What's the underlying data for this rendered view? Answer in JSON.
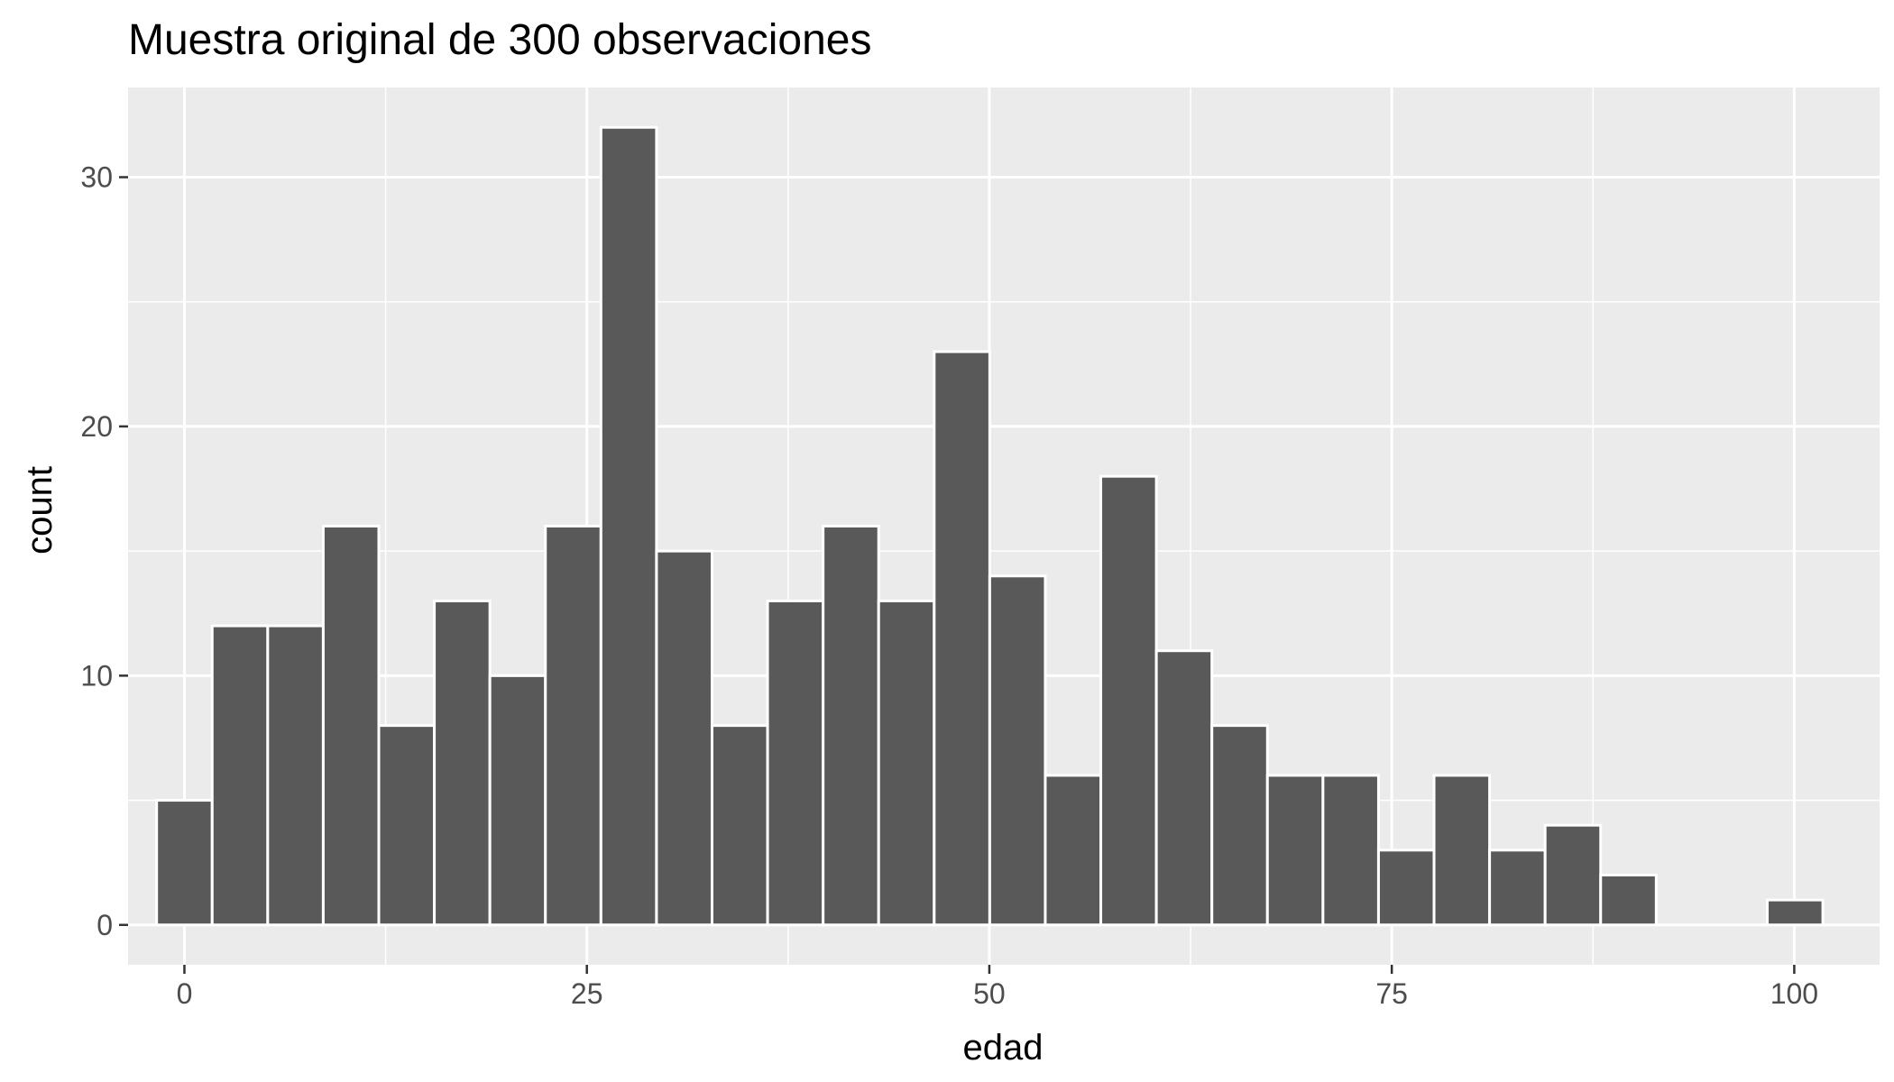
{
  "chart_data": {
    "type": "bar",
    "title": "Muestra original de 300 observaciones",
    "xlabel": "edad",
    "ylabel": "count",
    "bin_width": 3.45,
    "bins": [
      {
        "x": 0.0,
        "count": 5
      },
      {
        "x": 3.45,
        "count": 12
      },
      {
        "x": 6.9,
        "count": 12
      },
      {
        "x": 10.35,
        "count": 16
      },
      {
        "x": 13.8,
        "count": 8
      },
      {
        "x": 17.25,
        "count": 13
      },
      {
        "x": 20.7,
        "count": 10
      },
      {
        "x": 24.15,
        "count": 16
      },
      {
        "x": 27.6,
        "count": 32
      },
      {
        "x": 31.05,
        "count": 15
      },
      {
        "x": 34.5,
        "count": 8
      },
      {
        "x": 37.95,
        "count": 13
      },
      {
        "x": 41.4,
        "count": 16
      },
      {
        "x": 44.85,
        "count": 13
      },
      {
        "x": 48.3,
        "count": 23
      },
      {
        "x": 51.75,
        "count": 14
      },
      {
        "x": 55.2,
        "count": 6
      },
      {
        "x": 58.65,
        "count": 18
      },
      {
        "x": 62.1,
        "count": 11
      },
      {
        "x": 65.55,
        "count": 8
      },
      {
        "x": 69.0,
        "count": 6
      },
      {
        "x": 72.45,
        "count": 6
      },
      {
        "x": 75.9,
        "count": 3
      },
      {
        "x": 79.35,
        "count": 6
      },
      {
        "x": 82.8,
        "count": 3
      },
      {
        "x": 86.25,
        "count": 4
      },
      {
        "x": 89.7,
        "count": 2
      },
      {
        "x": 93.15,
        "count": 0
      },
      {
        "x": 96.6,
        "count": 0
      },
      {
        "x": 100.05,
        "count": 1
      }
    ],
    "xlim": [
      -3.5,
      105.3
    ],
    "ylim": [
      -1.6,
      33.6
    ],
    "x_ticks": [
      0,
      25,
      50,
      75,
      100
    ],
    "x_tick_labels": [
      "0",
      "25",
      "50",
      "75",
      "100"
    ],
    "y_ticks": [
      0,
      10,
      20,
      30
    ],
    "y_tick_labels": [
      "0",
      "10",
      "20",
      "30"
    ],
    "grid": true,
    "legend": "none",
    "colors": {
      "panel_background": "#ebebeb",
      "grid": "#ffffff",
      "bar_fill": "#595959",
      "bar_outline": "#ffffff",
      "tick_mark": "#333333"
    }
  }
}
